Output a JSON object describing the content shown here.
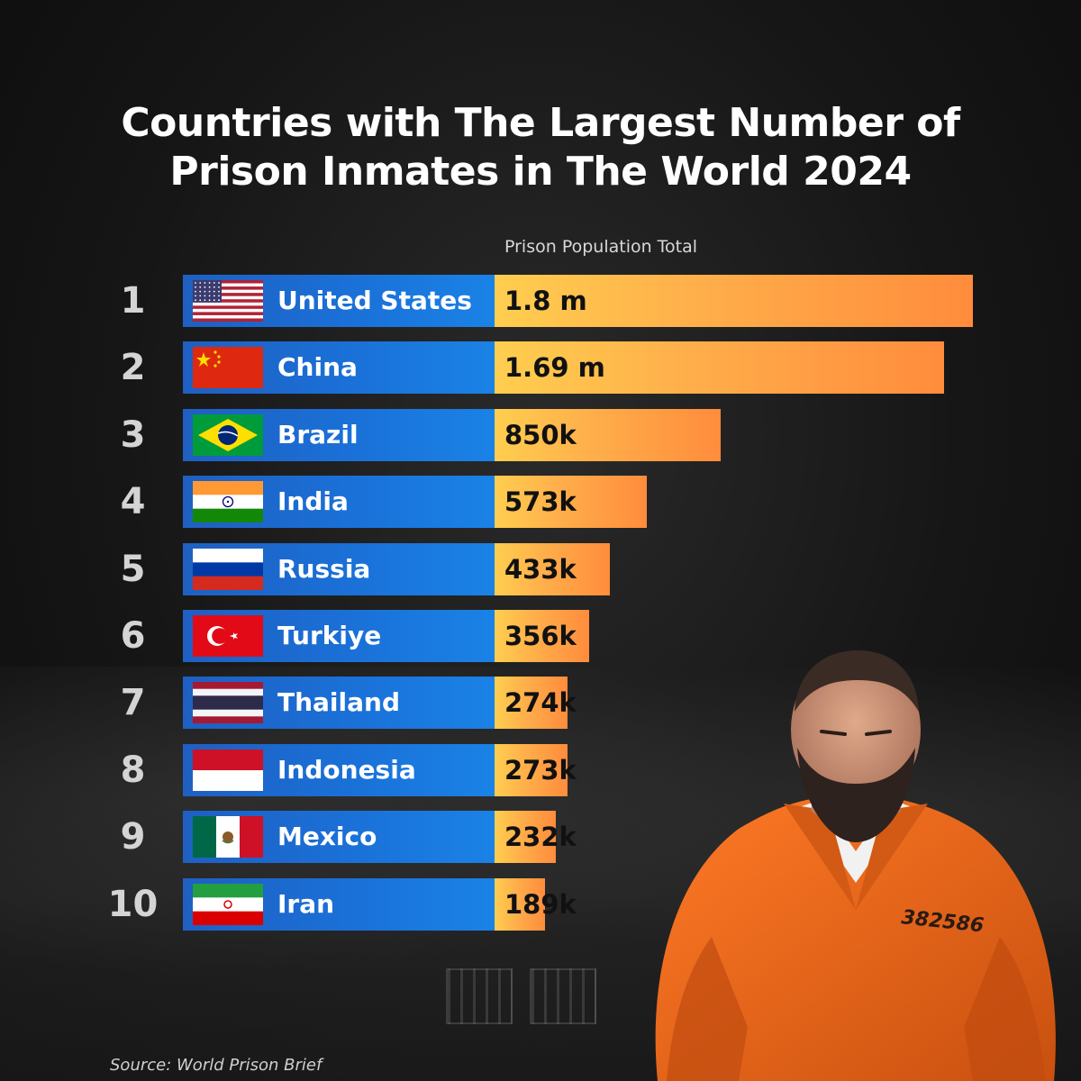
{
  "title_line1": "Countries with The Largest Number of",
  "title_line2": "Prison Inmates in The World 2024",
  "source": "Source: World Prison Brief",
  "jumpsuit_number": "382586",
  "colors": {
    "label_box": "#1a71d8",
    "bar_start": "#ffce4f",
    "bar_end": "#ff8c3c",
    "jumpsuit": "#f06a1c"
  },
  "chart_data": {
    "type": "bar",
    "orientation": "horizontal",
    "title": "Countries with The Largest Number of Prison Inmates in The World 2024",
    "value_label": "Prison Population Total",
    "xlim": [
      0,
      1800000
    ],
    "grid": false,
    "legend": "none",
    "categories": [
      "United States",
      "China",
      "Brazil",
      "India",
      "Russia",
      "Turkiye",
      "Thailand",
      "Indonesia",
      "Mexico",
      "Iran"
    ],
    "ranks": [
      "1",
      "2",
      "3",
      "4",
      "5",
      "6",
      "7",
      "8",
      "9",
      "10"
    ],
    "values": [
      1800000,
      1690000,
      850000,
      573000,
      433000,
      356000,
      274000,
      273000,
      232000,
      189000
    ],
    "value_labels": [
      "1.8 m",
      "1.69 m",
      "850k",
      "573k",
      "433k",
      "356k",
      "274k",
      "273k",
      "232k",
      "189k"
    ],
    "flags": [
      "us-flag-icon",
      "cn-flag-icon",
      "br-flag-icon",
      "in-flag-icon",
      "ru-flag-icon",
      "tr-flag-icon",
      "th-flag-icon",
      "id-flag-icon",
      "mx-flag-icon",
      "ir-flag-icon"
    ]
  }
}
